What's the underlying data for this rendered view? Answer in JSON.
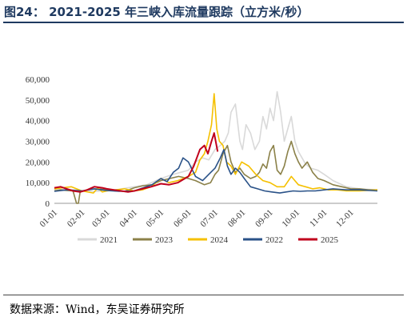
{
  "header": {
    "title": "图24：  2021-2025 年三峡入库流量跟踪（立方米/秒）"
  },
  "footer": {
    "source": "数据来源：Wind，东吴证券研究所"
  },
  "chart_data": {
    "type": "line",
    "title": "图24：  2021-2025 年三峡入库流量跟踪（立方米/秒）",
    "xlabel": "",
    "ylabel": "",
    "ylim": [
      0,
      60000
    ],
    "yticks": [
      "0",
      "10,000",
      "20,000",
      "30,000",
      "40,000",
      "50,000",
      "60,000"
    ],
    "xticks": [
      "01-01",
      "02-01",
      "03-01",
      "04-01",
      "05-01",
      "06-01",
      "07-01",
      "08-01",
      "09-01",
      "10-01",
      "11-01",
      "12-01"
    ],
    "x_unit": "day-of-year",
    "grid": false,
    "legend_position": "bottom",
    "series": [
      {
        "name": "2021",
        "color": "#d9d9d9",
        "x": [
          1,
          15,
          32,
          46,
          60,
          74,
          91,
          105,
          121,
          135,
          152,
          160,
          168,
          175,
          182,
          188,
          193,
          197,
          200,
          205,
          210,
          213,
          217,
          222,
          227,
          232,
          236,
          240,
          244,
          248,
          252,
          256,
          260,
          264,
          268,
          272,
          276,
          280,
          284,
          290,
          298,
          305,
          315,
          330,
          345,
          365
        ],
        "values": [
          6500,
          6800,
          6200,
          5800,
          6000,
          6800,
          8000,
          9000,
          12000,
          14000,
          16000,
          20000,
          22000,
          21000,
          26000,
          28000,
          30000,
          34000,
          44000,
          48000,
          30000,
          26000,
          38000,
          34000,
          26000,
          30000,
          42000,
          36000,
          46000,
          40000,
          54000,
          44000,
          30000,
          36000,
          42000,
          30000,
          25000,
          22000,
          19000,
          17000,
          16000,
          14000,
          11000,
          8000,
          7000,
          6500
        ]
      },
      {
        "name": "2023",
        "color": "#8b8149",
        "x": [
          1,
          8,
          15,
          22,
          26,
          28,
          30,
          34,
          40,
          50,
          60,
          70,
          80,
          91,
          101,
          111,
          121,
          131,
          141,
          152,
          160,
          170,
          177,
          182,
          186,
          191,
          196,
          200,
          205,
          210,
          215,
          222,
          228,
          232,
          236,
          240,
          244,
          248,
          252,
          256,
          260,
          264,
          268,
          272,
          276,
          280,
          286,
          292,
          298,
          305,
          315,
          325,
          335,
          345,
          355,
          365
        ],
        "values": [
          6000,
          6500,
          6200,
          6000,
          0,
          0,
          5500,
          6000,
          6800,
          7000,
          6500,
          6000,
          5800,
          7500,
          8500,
          9000,
          11000,
          12000,
          13000,
          12000,
          11000,
          9000,
          10000,
          14000,
          16000,
          24000,
          28000,
          20000,
          15000,
          17000,
          14000,
          12000,
          13000,
          15000,
          19000,
          17000,
          25000,
          28000,
          16000,
          14000,
          18000,
          25000,
          30000,
          24000,
          20000,
          17000,
          20000,
          15000,
          12000,
          11000,
          9000,
          8000,
          7000,
          7000,
          6500,
          6500
        ]
      },
      {
        "name": "2024",
        "color": "#f5c000",
        "x": [
          1,
          10,
          20,
          32,
          45,
          50,
          55,
          60,
          70,
          80,
          91,
          100,
          110,
          121,
          130,
          140,
          152,
          160,
          165,
          170,
          174,
          178,
          181,
          184,
          187,
          191,
          195,
          200,
          205,
          212,
          220,
          228,
          236,
          244,
          252,
          260,
          268,
          276,
          284,
          292,
          300,
          310,
          320,
          330,
          345,
          365
        ],
        "values": [
          7000,
          7500,
          8000,
          6000,
          5000,
          7500,
          5500,
          6000,
          6500,
          7000,
          6000,
          6500,
          8000,
          12000,
          10000,
          11000,
          13000,
          15000,
          21000,
          24000,
          30000,
          38000,
          53000,
          36000,
          30000,
          28000,
          20000,
          18000,
          14000,
          20000,
          18000,
          14000,
          11000,
          10000,
          8000,
          8000,
          13000,
          9000,
          8000,
          7000,
          7500,
          6500,
          6500,
          6000,
          6000,
          6500
        ]
      },
      {
        "name": "2022",
        "color": "#2a5288",
        "x": [
          1,
          15,
          32,
          46,
          60,
          74,
          91,
          101,
          111,
          121,
          128,
          135,
          141,
          146,
          152,
          160,
          168,
          175,
          182,
          188,
          192,
          196,
          200,
          205,
          210,
          215,
          222,
          230,
          238,
          246,
          255,
          262,
          270,
          278,
          286,
          295,
          305,
          315,
          330,
          345,
          365
        ],
        "values": [
          5800,
          6500,
          6000,
          7000,
          6200,
          5800,
          6000,
          7500,
          9000,
          12000,
          10500,
          15000,
          17000,
          22000,
          20000,
          13000,
          11000,
          14000,
          17000,
          22000,
          26000,
          18000,
          14000,
          17000,
          15000,
          12000,
          8000,
          7000,
          6000,
          5500,
          5000,
          5500,
          6000,
          5800,
          6000,
          6000,
          6500,
          7000,
          6500,
          6500,
          6000
        ]
      },
      {
        "name": "2025",
        "color": "#c0001c",
        "x": [
          1,
          8,
          15,
          22,
          30,
          38,
          46,
          55,
          60,
          68,
          76,
          84,
          91,
          100,
          110,
          121,
          130,
          140,
          152,
          158,
          165,
          170,
          174,
          178,
          181,
          185
        ],
        "values": [
          7500,
          8000,
          7000,
          6000,
          5500,
          6500,
          8000,
          7500,
          7000,
          6500,
          6000,
          5500,
          6000,
          7000,
          8000,
          9500,
          9000,
          10000,
          13000,
          18000,
          26000,
          28000,
          24000,
          30000,
          34000,
          25000
        ]
      }
    ]
  }
}
